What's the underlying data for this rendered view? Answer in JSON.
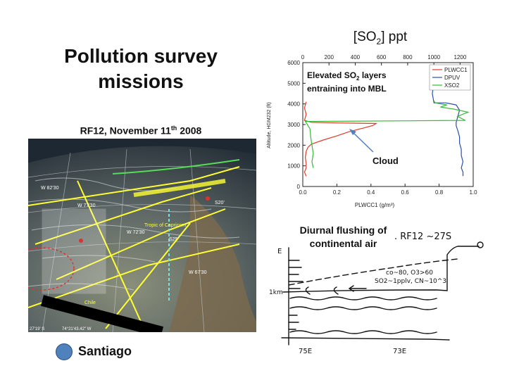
{
  "slide": {
    "title": "Pollution survey missions",
    "subtitle_main": "RF12, November 11",
    "subtitle_sup": "th",
    "subtitle_year": " 2008",
    "location_label": "Santiago",
    "marker_color": "#4f81bd"
  },
  "map": {
    "labels": [
      "W 82'30",
      "W 77'30",
      "W 72'30",
      "W 67'30",
      "Tropic of Capricorn",
      "Chile",
      "S25'",
      "S20'"
    ],
    "footer_left": "27'19' S",
    "footer_right": "74°21'43.42\" W",
    "track_color": "#ffff33"
  },
  "chart_data": {
    "type": "line",
    "top_axis_label": "[SO2] ppt",
    "top_axis_label_main": "[SO",
    "top_axis_label_sub": "2",
    "top_axis_label_end": "] ppt",
    "top_ticks": [
      "0",
      "200",
      "400",
      "600",
      "800",
      "1000",
      "1200"
    ],
    "top_range": [
      0,
      1300
    ],
    "xlabel": "PLWCC1 (g/m³)",
    "ylabel": "Altitude, HGM232 (ft)",
    "x_ticks": [
      "0.0",
      "0.2",
      "0.4",
      "0.6",
      "0.8",
      "1.0"
    ],
    "xlim": [
      0,
      1.0
    ],
    "y_ticks": [
      "0",
      "1000",
      "2000",
      "3000",
      "4000",
      "5000",
      "6000"
    ],
    "ylim": [
      0,
      6000
    ],
    "annotation_line1": "Elevated SO",
    "annotation_sub": "2",
    "annotation_line1_end": " layers",
    "annotation_line2": "entraining into MBL",
    "cloud_label": "Cloud",
    "legend": [
      "PLWCC1",
      "DPUV",
      "XSO2"
    ],
    "series": [
      {
        "name": "PLWCC1",
        "axis": "bottom",
        "color": "#e03b2c",
        "points": [
          [
            0.02,
            500
          ],
          [
            0.01,
            700
          ],
          [
            0.02,
            900
          ],
          [
            0.02,
            1100
          ],
          [
            0.015,
            1400
          ],
          [
            0.02,
            1700
          ],
          [
            0.03,
            1900
          ],
          [
            0.05,
            2050
          ],
          [
            0.12,
            2250
          ],
          [
            0.2,
            2450
          ],
          [
            0.27,
            2650
          ],
          [
            0.35,
            2820
          ],
          [
            0.41,
            2950
          ],
          [
            0.43,
            3050
          ],
          [
            0.2,
            3080
          ],
          [
            0.05,
            3110
          ],
          [
            0.01,
            3200
          ],
          [
            0.02,
            3500
          ],
          [
            0.01,
            3800
          ],
          [
            0.02,
            4100
          ]
        ]
      },
      {
        "name": "DPUV",
        "axis": "bottom",
        "color": "#2b4fa8",
        "points": [
          [
            0.94,
            500
          ],
          [
            0.94,
            700
          ],
          [
            0.93,
            900
          ],
          [
            0.94,
            1200
          ],
          [
            0.93,
            1500
          ],
          [
            0.93,
            1800
          ],
          [
            0.92,
            2100
          ],
          [
            0.92,
            2400
          ],
          [
            0.91,
            2700
          ],
          [
            0.9,
            2950
          ],
          [
            0.9,
            3100
          ],
          [
            0.91,
            3400
          ],
          [
            0.92,
            3700
          ],
          [
            0.9,
            3950
          ],
          [
            0.84,
            4050
          ],
          [
            0.77,
            4050
          ],
          [
            0.76,
            4500
          ],
          [
            0.77,
            5000
          ]
        ]
      },
      {
        "name": "XSO2",
        "axis": "top",
        "color": "#3ab83a",
        "points": [
          [
            80,
            900
          ],
          [
            70,
            1200
          ],
          [
            80,
            1600
          ],
          [
            70,
            2000
          ],
          [
            60,
            2400
          ],
          [
            55,
            2800
          ],
          [
            20,
            3150
          ],
          [
            800,
            3180
          ],
          [
            1240,
            3200
          ],
          [
            1180,
            3400
          ],
          [
            1260,
            3600
          ],
          [
            1150,
            3750
          ],
          [
            1050,
            3850
          ],
          [
            1100,
            3950
          ],
          [
            1010,
            4050
          ],
          [
            1000,
            4150
          ]
        ]
      }
    ]
  },
  "sketch": {
    "flushing_line1": "Diurnal flushing of",
    "flushing_line2": "continental air",
    "note_top": ". RF12 ~27S",
    "co_note": "co~80, O3>60",
    "so2_note": "SO2~1pplv, CN~10^3",
    "level_label": "1km",
    "x_label_left": "75E",
    "x_label_right": "73E",
    "axis_letter": "E"
  }
}
